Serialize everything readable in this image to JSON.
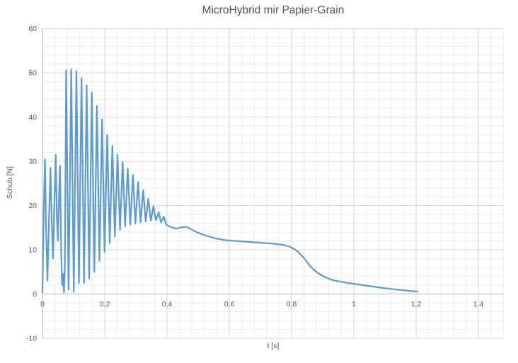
{
  "chart": {
    "title": "MicroHybrid mir Papier-Grain",
    "x_axis_title": "t [s]",
    "y_axis_title": "Schub [N]"
  },
  "colors": {
    "background": "#FFFFFF",
    "series_line": "#5B9BD5",
    "major_gridline": "#D6D6D6",
    "minor_gridline": "#ECECEC",
    "axis_line": "#B7B7B7",
    "tick_label": "#595959",
    "title_text": "#535353"
  },
  "chart_data": {
    "type": "line",
    "title": "MicroHybrid mir Papier-Grain",
    "xlabel": "t [s]",
    "ylabel": "Schub [N]",
    "xlim": [
      0,
      1.48
    ],
    "ylim": [
      -10,
      60
    ],
    "x_major_unit": 0.2,
    "x_minor_unit": 0.04,
    "y_major_unit": 10,
    "y_minor_unit": 2,
    "grid": "major+minor",
    "legend": "none",
    "x_ticks": [
      {
        "v": 0,
        "label": "0"
      },
      {
        "v": 0.2,
        "label": "0,2"
      },
      {
        "v": 0.4,
        "label": "0,4"
      },
      {
        "v": 0.6,
        "label": "0,6"
      },
      {
        "v": 0.8,
        "label": "0,8"
      },
      {
        "v": 1,
        "label": "1"
      },
      {
        "v": 1.2,
        "label": "1,2"
      },
      {
        "v": 1.4,
        "label": "1,4"
      }
    ],
    "y_ticks": [
      {
        "v": -10,
        "label": "-10"
      },
      {
        "v": 0,
        "label": "0"
      },
      {
        "v": 10,
        "label": "10"
      },
      {
        "v": 20,
        "label": "20"
      },
      {
        "v": 30,
        "label": "30"
      },
      {
        "v": 40,
        "label": "40"
      },
      {
        "v": 50,
        "label": "50"
      },
      {
        "v": 60,
        "label": "60"
      }
    ],
    "series": [
      {
        "name": "Schub",
        "points": [
          [
            0,
            0.3
          ],
          [
            0.004,
            18
          ],
          [
            0.008,
            30.5
          ],
          [
            0.012,
            14
          ],
          [
            0.016,
            3
          ],
          [
            0.021,
            17
          ],
          [
            0.0255,
            28.5
          ],
          [
            0.03,
            16
          ],
          [
            0.034,
            8
          ],
          [
            0.038,
            20
          ],
          [
            0.0425,
            31.5
          ],
          [
            0.046,
            18
          ],
          [
            0.0495,
            12
          ],
          [
            0.053,
            22
          ],
          [
            0.0565,
            29
          ],
          [
            0.06,
            10
          ],
          [
            0.063,
            2
          ],
          [
            0.066,
            4.5
          ],
          [
            0.069,
            0.4
          ],
          [
            0.072,
            6
          ],
          [
            0.076,
            50.6
          ],
          [
            0.084,
            1
          ],
          [
            0.0925,
            50.8
          ],
          [
            0.1005,
            0.5
          ],
          [
            0.109,
            50.4
          ],
          [
            0.117,
            2.5
          ],
          [
            0.1255,
            48.8
          ],
          [
            0.1335,
            2.5
          ],
          [
            0.142,
            47.2
          ],
          [
            0.15,
            3.5
          ],
          [
            0.1585,
            45.5
          ],
          [
            0.1665,
            5
          ],
          [
            0.175,
            42.5
          ],
          [
            0.183,
            7.5
          ],
          [
            0.1915,
            39.5
          ],
          [
            0.1995,
            9.5
          ],
          [
            0.208,
            36
          ],
          [
            0.216,
            11.5
          ],
          [
            0.2245,
            33.5
          ],
          [
            0.2325,
            13
          ],
          [
            0.241,
            31.5
          ],
          [
            0.249,
            14.5
          ],
          [
            0.2575,
            29.8
          ],
          [
            0.2655,
            15.3
          ],
          [
            0.274,
            28.3
          ],
          [
            0.282,
            15.7
          ],
          [
            0.2905,
            26.9
          ],
          [
            0.2985,
            16
          ],
          [
            0.307,
            25.3
          ],
          [
            0.315,
            16.2
          ],
          [
            0.3235,
            23.5
          ],
          [
            0.3315,
            16.4
          ],
          [
            0.34,
            21.5
          ],
          [
            0.348,
            16.6
          ],
          [
            0.3565,
            19.8
          ],
          [
            0.3645,
            16.7
          ],
          [
            0.373,
            18.5
          ],
          [
            0.381,
            16.2
          ],
          [
            0.3895,
            17.5
          ],
          [
            0.3975,
            15.7
          ],
          [
            0.405,
            15.4
          ],
          [
            0.414,
            15.1
          ],
          [
            0.423,
            14.9
          ],
          [
            0.432,
            14.8
          ],
          [
            0.441,
            15
          ],
          [
            0.45,
            15.1
          ],
          [
            0.459,
            15.2
          ],
          [
            0.468,
            15
          ],
          [
            0.477,
            14.7
          ],
          [
            0.486,
            14.3
          ],
          [
            0.495,
            14
          ],
          [
            0.51,
            13.6
          ],
          [
            0.525,
            13.2
          ],
          [
            0.54,
            12.9
          ],
          [
            0.555,
            12.6
          ],
          [
            0.57,
            12.4
          ],
          [
            0.585,
            12.2
          ],
          [
            0.6,
            12.1
          ],
          [
            0.62,
            12
          ],
          [
            0.64,
            11.9
          ],
          [
            0.66,
            11.8
          ],
          [
            0.68,
            11.7
          ],
          [
            0.7,
            11.6
          ],
          [
            0.72,
            11.5
          ],
          [
            0.74,
            11.4
          ],
          [
            0.76,
            11.2
          ],
          [
            0.775,
            11.1
          ],
          [
            0.79,
            10.8
          ],
          [
            0.8,
            10.5
          ],
          [
            0.81,
            10.1
          ],
          [
            0.82,
            9.6
          ],
          [
            0.83,
            8.9
          ],
          [
            0.84,
            8.1
          ],
          [
            0.85,
            7.2
          ],
          [
            0.86,
            6.3
          ],
          [
            0.87,
            5.6
          ],
          [
            0.88,
            5
          ],
          [
            0.89,
            4.5
          ],
          [
            0.9,
            4.1
          ],
          [
            0.915,
            3.6
          ],
          [
            0.93,
            3.2
          ],
          [
            0.945,
            2.95
          ],
          [
            0.96,
            2.75
          ],
          [
            0.98,
            2.5
          ],
          [
            1,
            2.3
          ],
          [
            1.02,
            2.1
          ],
          [
            1.04,
            1.9
          ],
          [
            1.06,
            1.7
          ],
          [
            1.08,
            1.5
          ],
          [
            1.1,
            1.3
          ],
          [
            1.12,
            1.15
          ],
          [
            1.14,
            1
          ],
          [
            1.16,
            0.85
          ],
          [
            1.18,
            0.7
          ],
          [
            1.195,
            0.6
          ],
          [
            1.205,
            0.55
          ]
        ]
      }
    ]
  }
}
